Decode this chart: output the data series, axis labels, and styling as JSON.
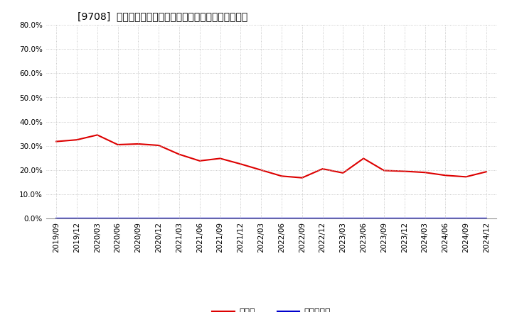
{
  "title": "[9708]  現頑金、有利子負債の総資産に対する比率の推移",
  "x_labels": [
    "2019/09",
    "2019/12",
    "2020/03",
    "2020/06",
    "2020/09",
    "2020/12",
    "2021/03",
    "2021/06",
    "2021/09",
    "2021/12",
    "2022/03",
    "2022/06",
    "2022/09",
    "2022/12",
    "2023/03",
    "2023/06",
    "2023/09",
    "2023/12",
    "2024/03",
    "2024/06",
    "2024/09",
    "2024/12"
  ],
  "cash_values": [
    0.318,
    0.325,
    0.345,
    0.305,
    0.308,
    0.302,
    0.265,
    0.238,
    0.248,
    0.225,
    0.2,
    0.175,
    0.168,
    0.205,
    0.188,
    0.248,
    0.198,
    0.195,
    0.19,
    0.178,
    0.172,
    0.193
  ],
  "debt_values": [
    0.0,
    0.0,
    0.0,
    0.0,
    0.0,
    0.0,
    0.0,
    0.0,
    0.0,
    0.0,
    0.0,
    0.0,
    0.0,
    0.0,
    0.0,
    0.0,
    0.0,
    0.0,
    0.0,
    0.0,
    0.0,
    0.0
  ],
  "cash_color": "#dd0000",
  "debt_color": "#0000cc",
  "background_color": "#ffffff",
  "plot_bg_color": "#ffffff",
  "grid_color": "#bbbbbb",
  "title_color": "#000000",
  "ylim": [
    0.0,
    0.8
  ],
  "yticks": [
    0.0,
    0.1,
    0.2,
    0.3,
    0.4,
    0.5,
    0.6,
    0.7,
    0.8
  ],
  "legend_cash": "現頑金",
  "legend_debt": "有利子負債",
  "title_fontsize": 10,
  "tick_fontsize": 7.5,
  "legend_fontsize": 9
}
